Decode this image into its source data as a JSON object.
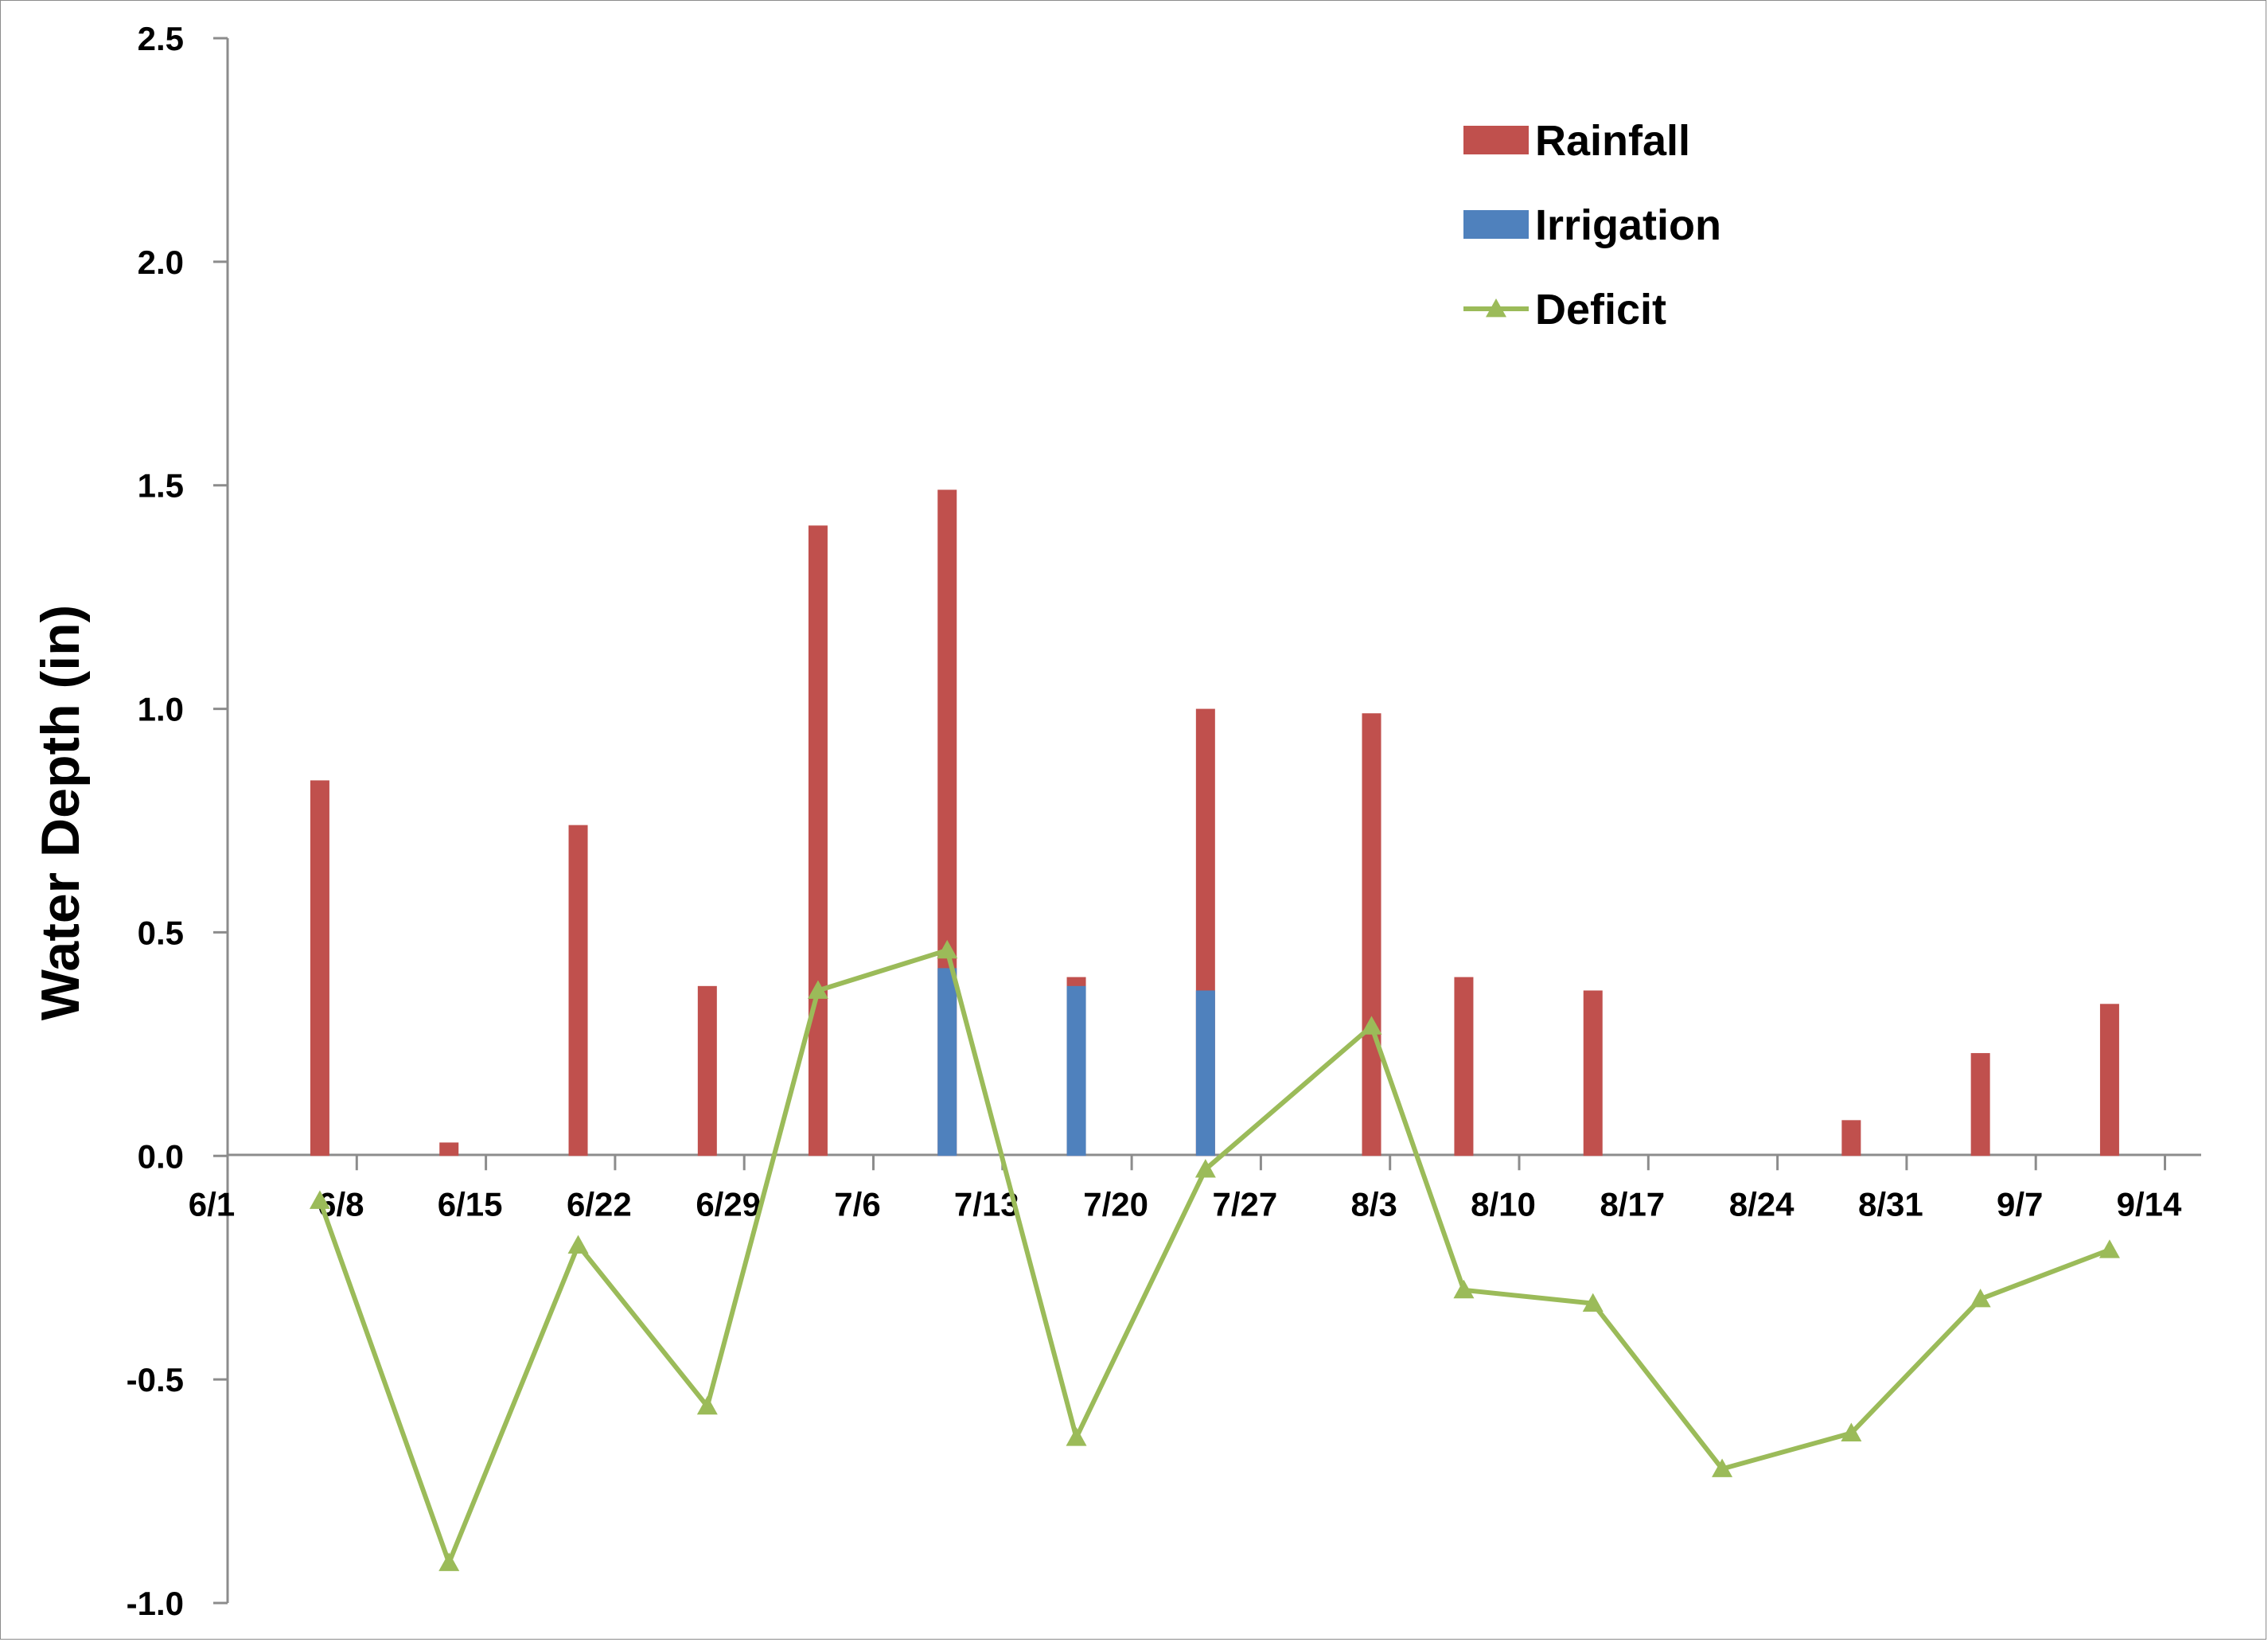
{
  "chart_data": {
    "type": "bar",
    "title": "",
    "ylabel": "Water Depth (in)",
    "xlabel": "",
    "ylim": [
      -1.0,
      2.5
    ],
    "yticks": [
      2.5,
      2.0,
      1.5,
      1.0,
      0.5,
      0.0,
      -0.5,
      -1.0
    ],
    "ytick_labels": [
      "2.5",
      "2.0",
      "1.5",
      "1.0",
      "0.5",
      "0.0",
      "-0.5",
      "-1.0"
    ],
    "xticks": [
      "6/1",
      "6/8",
      "6/15",
      "6/22",
      "6/29",
      "7/6",
      "7/13",
      "7/20",
      "7/27",
      "8/3",
      "8/10",
      "8/17",
      "8/24",
      "8/31",
      "9/7",
      "9/14"
    ],
    "grid": false,
    "legend_position": "top-right",
    "legend": [
      {
        "label": "Rainfall",
        "color": "#C0504D",
        "kind": "bar"
      },
      {
        "label": "Irrigation",
        "color": "#4F81BD",
        "kind": "bar"
      },
      {
        "label": "Deficit",
        "color": "#9BBB59",
        "kind": "line-triangle"
      }
    ],
    "series": [
      {
        "name": "Rainfall",
        "type": "bar",
        "color": "#C0504D",
        "x": [
          "6/6",
          "6/13",
          "6/20",
          "6/27",
          "7/3",
          "7/10",
          "7/17",
          "7/24",
          "8/2",
          "8/7",
          "8/14",
          "8/28",
          "9/4",
          "9/11"
        ],
        "values": [
          0.84,
          0.03,
          0.74,
          0.38,
          1.41,
          1.49,
          0.4,
          1.0,
          0.99,
          0.4,
          0.37,
          0.08,
          0.23,
          0.34
        ]
      },
      {
        "name": "Irrigation",
        "type": "bar",
        "color": "#4F81BD",
        "x": [
          "7/10",
          "7/17",
          "7/24"
        ],
        "values": [
          0.42,
          0.38,
          0.37
        ]
      },
      {
        "name": "Deficit",
        "type": "line",
        "color": "#9BBB59",
        "marker": "triangle",
        "x": [
          "6/6",
          "6/13",
          "6/20",
          "6/27",
          "7/3",
          "7/10",
          "7/17",
          "7/24",
          "8/2",
          "8/7",
          "8/14",
          "8/21",
          "8/28",
          "9/4",
          "9/11"
        ],
        "values": [
          -0.1,
          -0.91,
          -0.2,
          -0.56,
          0.37,
          0.46,
          -0.63,
          -0.03,
          0.29,
          -0.3,
          -0.33,
          -0.7,
          -0.62,
          -0.32,
          -0.21
        ]
      }
    ]
  }
}
